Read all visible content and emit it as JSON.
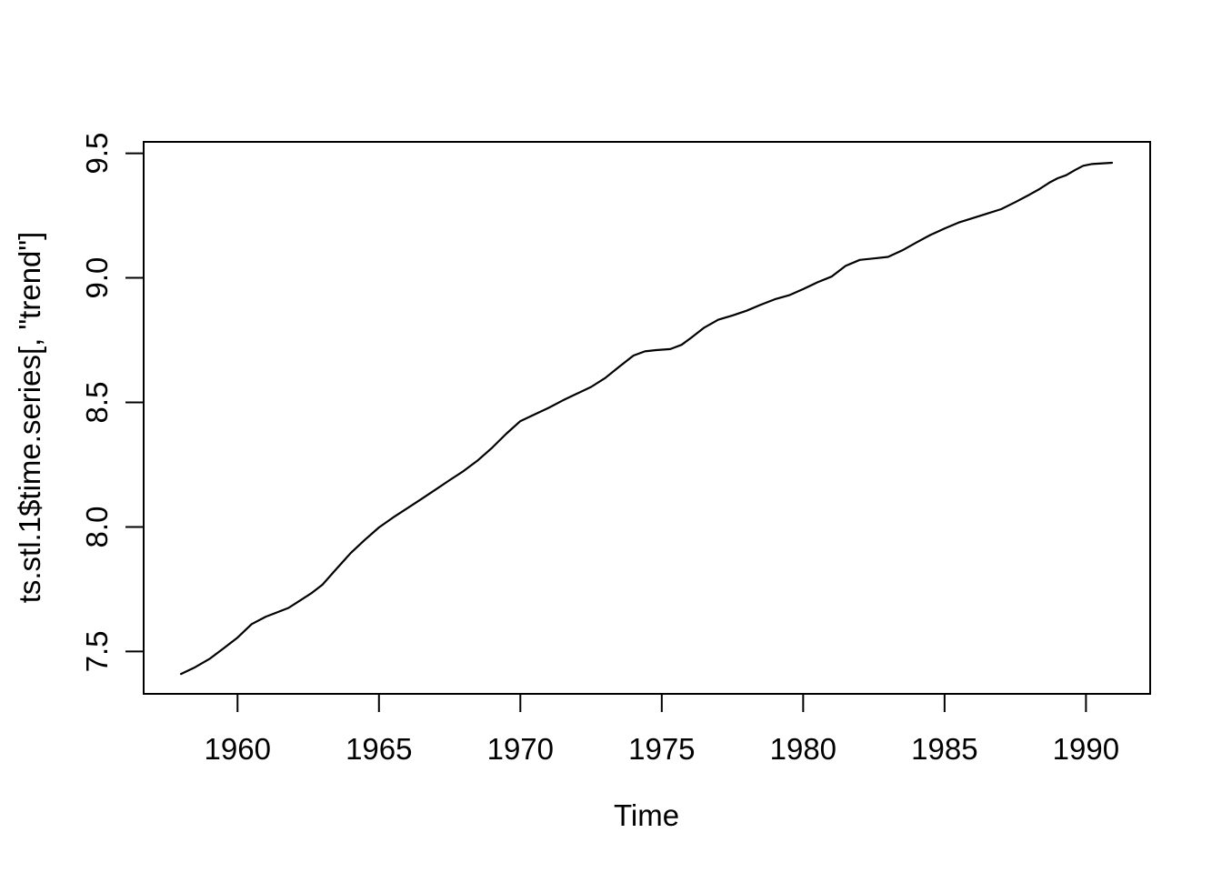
{
  "chart_data": {
    "type": "line",
    "title": "",
    "xlabel": "Time",
    "ylabel": "ts.stl.1$time.series[, \"trend\"]",
    "x_range": [
      1956.68,
      1992.27
    ],
    "y_range": [
      7.33,
      9.546
    ],
    "x_ticks": {
      "values": [
        1960,
        1965,
        1970,
        1975,
        1980,
        1985,
        1990
      ],
      "labels": [
        "1960",
        "1965",
        "1970",
        "1975",
        "1980",
        "1985",
        "1990"
      ]
    },
    "y_ticks": {
      "values": [
        7.5,
        8.0,
        8.5,
        9.0,
        9.5
      ],
      "labels": [
        "7.5",
        "8.0",
        "8.5",
        "9.0",
        "9.5"
      ]
    },
    "grid": false,
    "legend": "none",
    "line_color": "#000000",
    "background_color": "#ffffff",
    "series": [
      {
        "name": "trend",
        "points": [
          [
            1958.0,
            7.41
          ],
          [
            1958.5,
            7.437
          ],
          [
            1959.0,
            7.47
          ],
          [
            1959.5,
            7.512
          ],
          [
            1960.0,
            7.556
          ],
          [
            1960.5,
            7.61
          ],
          [
            1961.0,
            7.64
          ],
          [
            1961.4,
            7.657
          ],
          [
            1961.8,
            7.675
          ],
          [
            1962.2,
            7.704
          ],
          [
            1962.6,
            7.733
          ],
          [
            1963.0,
            7.768
          ],
          [
            1963.5,
            7.832
          ],
          [
            1964.0,
            7.895
          ],
          [
            1964.5,
            7.948
          ],
          [
            1965.0,
            7.998
          ],
          [
            1965.5,
            8.038
          ],
          [
            1966.0,
            8.075
          ],
          [
            1966.5,
            8.112
          ],
          [
            1967.0,
            8.15
          ],
          [
            1967.5,
            8.188
          ],
          [
            1968.0,
            8.225
          ],
          [
            1968.5,
            8.268
          ],
          [
            1969.0,
            8.318
          ],
          [
            1969.5,
            8.374
          ],
          [
            1970.0,
            8.425
          ],
          [
            1970.5,
            8.452
          ],
          [
            1971.0,
            8.478
          ],
          [
            1971.5,
            8.508
          ],
          [
            1972.0,
            8.535
          ],
          [
            1972.5,
            8.562
          ],
          [
            1973.0,
            8.598
          ],
          [
            1973.5,
            8.644
          ],
          [
            1974.0,
            8.688
          ],
          [
            1974.4,
            8.705
          ],
          [
            1974.8,
            8.71
          ],
          [
            1975.3,
            8.714
          ],
          [
            1975.7,
            8.731
          ],
          [
            1976.0,
            8.756
          ],
          [
            1976.5,
            8.8
          ],
          [
            1977.0,
            8.832
          ],
          [
            1977.5,
            8.849
          ],
          [
            1978.0,
            8.868
          ],
          [
            1978.5,
            8.892
          ],
          [
            1979.0,
            8.914
          ],
          [
            1979.5,
            8.93
          ],
          [
            1980.0,
            8.955
          ],
          [
            1980.5,
            8.982
          ],
          [
            1981.0,
            9.005
          ],
          [
            1981.5,
            9.048
          ],
          [
            1982.0,
            9.072
          ],
          [
            1982.5,
            9.078
          ],
          [
            1983.0,
            9.084
          ],
          [
            1983.5,
            9.11
          ],
          [
            1984.0,
            9.142
          ],
          [
            1984.5,
            9.172
          ],
          [
            1985.0,
            9.198
          ],
          [
            1985.5,
            9.222
          ],
          [
            1986.0,
            9.24
          ],
          [
            1986.5,
            9.258
          ],
          [
            1987.0,
            9.276
          ],
          [
            1987.5,
            9.304
          ],
          [
            1988.0,
            9.334
          ],
          [
            1988.35,
            9.356
          ],
          [
            1988.7,
            9.382
          ],
          [
            1989.0,
            9.4
          ],
          [
            1989.3,
            9.412
          ],
          [
            1989.6,
            9.432
          ],
          [
            1989.9,
            9.45
          ],
          [
            1990.2,
            9.457
          ],
          [
            1990.6,
            9.46
          ],
          [
            1990.92,
            9.462
          ]
        ]
      }
    ]
  }
}
